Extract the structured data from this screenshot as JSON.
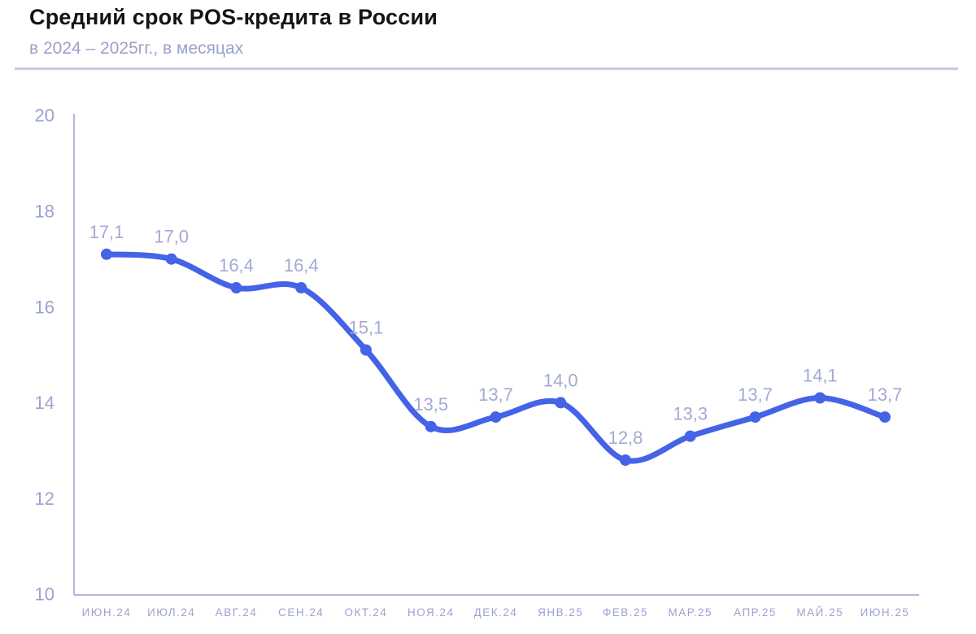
{
  "chart_data": {
    "type": "line",
    "title": "Средний срок POS-кредита в России",
    "subtitle": "в 2024 – 2025гг., в месяцах",
    "categories": [
      "ИЮН.24",
      "ИЮЛ.24",
      "АВГ.24",
      "СЕН.24",
      "ОКТ.24",
      "НОЯ.24",
      "ДЕК.24",
      "ЯНВ.25",
      "ФЕВ.25",
      "МАР.25",
      "АПР.25",
      "МАЙ.25",
      "ИЮН.25"
    ],
    "values": [
      17.1,
      17.0,
      16.4,
      16.4,
      15.1,
      13.5,
      13.7,
      14.0,
      12.8,
      13.3,
      13.7,
      14.1,
      13.7
    ],
    "value_labels": [
      "17,1",
      "17,0",
      "16,4",
      "16,4",
      "15,1",
      "13,5",
      "13,7",
      "14,0",
      "12,8",
      "13,3",
      "13,7",
      "14,1",
      "13,7"
    ],
    "ylim": [
      10,
      20
    ],
    "yticks": [
      10,
      12,
      14,
      16,
      18,
      20
    ],
    "ytick_labels": [
      "10",
      "12",
      "14",
      "16",
      "18",
      "20"
    ],
    "grid": false,
    "legend": "none",
    "line_style": "smooth",
    "markers": true,
    "colors": {
      "line": "#4463e7",
      "marker": "#4463e7",
      "axis": "#b2b7db",
      "tick_labels": "#9ba2cf",
      "value_labels": "#a3aad4",
      "title": "#141414",
      "subtitle": "#9aa1cc",
      "divider": "#c7cae6",
      "background": "#ffffff"
    }
  }
}
